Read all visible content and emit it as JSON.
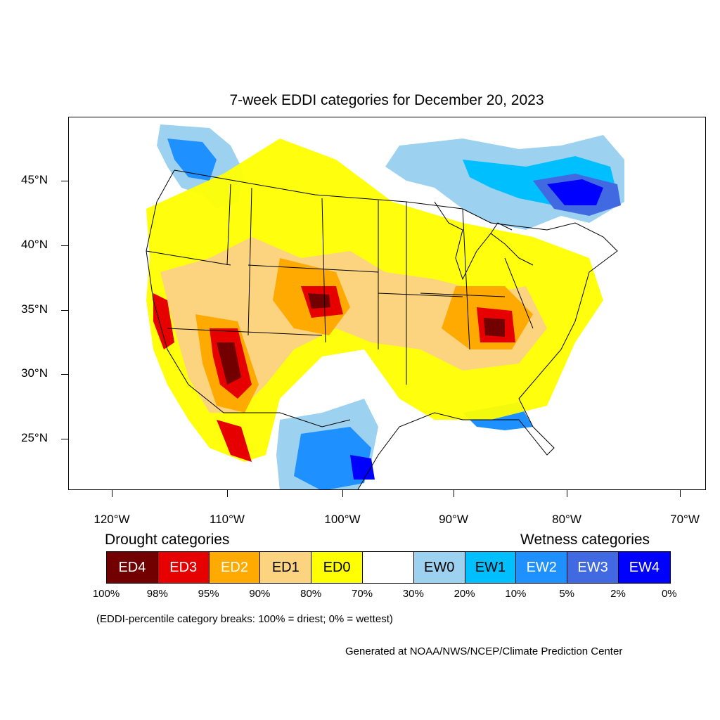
{
  "title": "7-week EDDI categories for December 20, 2023",
  "latitude_labels": [
    "45°N",
    "40°N",
    "35°N",
    "30°N",
    "25°N"
  ],
  "longitude_labels": [
    "120°W",
    "110°W",
    "100°W",
    "90°W",
    "80°W",
    "70°W"
  ],
  "legend": {
    "drought_title": "Drought categories",
    "wetness_title": "Wetness categories",
    "categories": [
      {
        "label": "ED4",
        "color": "#730000",
        "text_color": "#ffffff"
      },
      {
        "label": "ED3",
        "color": "#e60000",
        "text_color": "#ffffff"
      },
      {
        "label": "ED2",
        "color": "#ffaa00",
        "text_color": "#ffffff"
      },
      {
        "label": "ED1",
        "color": "#fcd37f",
        "text_color": "#000000"
      },
      {
        "label": "ED0",
        "color": "#ffff00",
        "text_color": "#000000"
      },
      {
        "label": "",
        "color": "#ffffff",
        "text_color": "#000000"
      },
      {
        "label": "EW0",
        "color": "#9dd1f0",
        "text_color": "#000000"
      },
      {
        "label": "EW1",
        "color": "#00bfff",
        "text_color": "#000000"
      },
      {
        "label": "EW2",
        "color": "#1e90ff",
        "text_color": "#ffffff"
      },
      {
        "label": "EW3",
        "color": "#4169e1",
        "text_color": "#ffffff"
      },
      {
        "label": "EW4",
        "color": "#0000ff",
        "text_color": "#ffffff"
      }
    ],
    "percent_breaks": [
      "100%",
      "98%",
      "95%",
      "90%",
      "80%",
      "70%",
      "30%",
      "20%",
      "10%",
      "5%",
      "2%",
      "0%"
    ]
  },
  "note": "(EDDI-percentile category breaks: 100% = driest; 0% = wettest)",
  "credit": "Generated at NOAA/NWS/NCEP/Climate Prediction Center"
}
